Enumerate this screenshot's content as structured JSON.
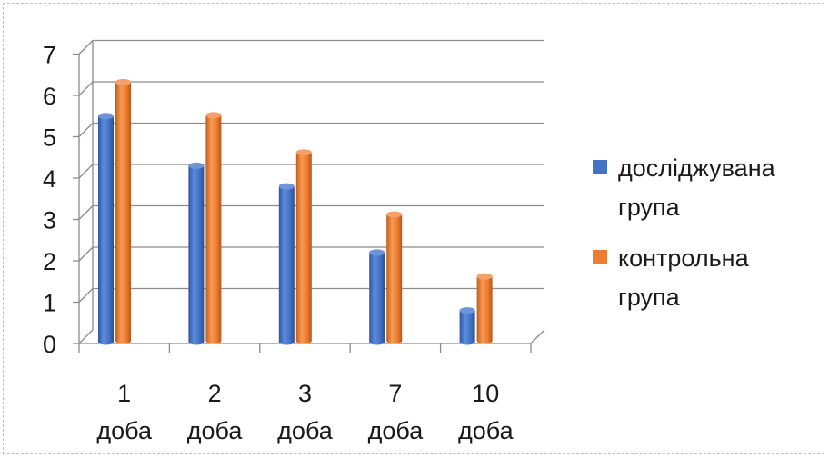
{
  "chart_data": {
    "type": "bar",
    "categories": [
      [
        "1",
        "доба"
      ],
      [
        "2",
        "доба"
      ],
      [
        "3",
        "доба"
      ],
      [
        "7",
        "доба"
      ],
      [
        "10",
        "доба"
      ]
    ],
    "series": [
      {
        "name": [
          "досліджувана",
          "група"
        ],
        "values": [
          5.5,
          4.3,
          3.8,
          2.2,
          0.8
        ],
        "color": "#4472c4"
      },
      {
        "name": [
          "контрольна",
          "група"
        ],
        "values": [
          6.3,
          5.5,
          4.6,
          3.1,
          1.6
        ],
        "color": "#ed7d31"
      }
    ],
    "ylim": [
      0,
      7
    ],
    "yticks": [
      "0",
      "1",
      "2",
      "3",
      "4",
      "5",
      "6",
      "7"
    ],
    "grid": true,
    "legend": "right"
  }
}
